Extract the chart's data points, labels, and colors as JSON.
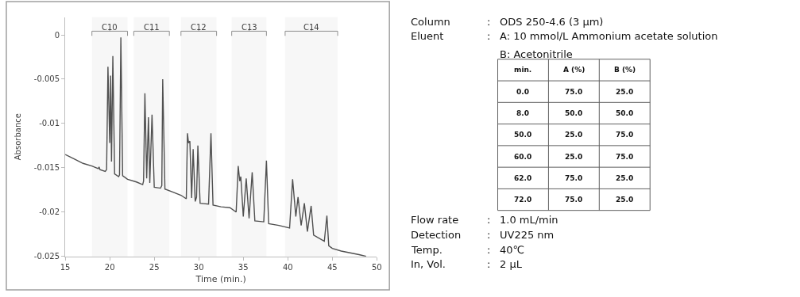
{
  "chart_data": [
    {
      "type": "line",
      "xlabel": "Time (min.)",
      "ylabel": "Absorbance",
      "xlim": [
        15,
        50
      ],
      "ylim": [
        -0.025,
        0.002
      ],
      "xticks": [
        15,
        20,
        25,
        30,
        35,
        40,
        45,
        50
      ],
      "yticks": [
        0,
        -0.005,
        -0.01,
        -0.015,
        -0.02,
        -0.025
      ],
      "grid": false,
      "marker": "none",
      "line_style": "solid",
      "bands": [
        {
          "axis": "x",
          "from": 18.0,
          "to": 22.0,
          "label": "C10"
        },
        {
          "axis": "x",
          "from": 22.7,
          "to": 26.7,
          "label": "C11"
        },
        {
          "axis": "x",
          "from": 28.0,
          "to": 32.0,
          "label": "C12"
        },
        {
          "axis": "x",
          "from": 33.7,
          "to": 37.6,
          "label": "C13"
        },
        {
          "axis": "x",
          "from": 39.7,
          "to": 45.6,
          "label": "C14"
        }
      ],
      "series": [
        {
          "color": "#505050",
          "x": [
            15,
            16,
            17,
            18,
            18.7,
            18.8,
            18.9,
            19.5,
            19.65,
            19.8,
            20.0,
            20.1,
            20.2,
            20.35,
            20.55,
            21.0,
            21.1,
            21.25,
            21.45,
            22,
            23,
            23.7,
            23.8,
            23.95,
            24.15,
            24.35,
            24.5,
            24.75,
            25.0,
            25.7,
            25.85,
            25.95,
            26.2,
            27,
            28,
            28.6,
            28.73,
            28.85,
            29.0,
            29.2,
            29.37,
            29.6,
            29.75,
            29.9,
            30.15,
            31.1,
            31.37,
            31.6,
            32.5,
            33.5,
            34.2,
            34.43,
            34.6,
            34.72,
            35.0,
            35.33,
            35.65,
            36.0,
            36.3,
            37.3,
            37.6,
            37.85,
            39,
            40.2,
            40.54,
            40.9,
            41.15,
            41.5,
            41.86,
            42.2,
            42.62,
            42.9,
            44.1,
            44.39,
            44.6,
            45,
            46,
            47,
            48,
            48.8
          ],
          "values": [
            -0.0135,
            -0.014,
            -0.0145,
            -0.0148,
            -0.0151,
            -0.0149,
            -0.0152,
            -0.0154,
            -0.0152,
            -0.0036,
            -0.0122,
            -0.0046,
            -0.0143,
            -0.0024,
            -0.0157,
            -0.016,
            -0.0158,
            -0.0003,
            -0.0159,
            -0.0163,
            -0.0166,
            -0.0169,
            -0.0165,
            -0.0066,
            -0.0162,
            -0.0093,
            -0.0167,
            -0.009,
            -0.0172,
            -0.0173,
            -0.017,
            -0.005,
            -0.0174,
            -0.0177,
            -0.0181,
            -0.0185,
            -0.0111,
            -0.0122,
            -0.012,
            -0.0184,
            -0.0129,
            -0.0188,
            -0.0183,
            -0.0125,
            -0.019,
            -0.0191,
            -0.0111,
            -0.0192,
            -0.0194,
            -0.0195,
            -0.02,
            -0.0148,
            -0.0165,
            -0.016,
            -0.0205,
            -0.0162,
            -0.0207,
            -0.0155,
            -0.021,
            -0.0211,
            -0.0142,
            -0.0213,
            -0.0215,
            -0.0218,
            -0.0163,
            -0.0205,
            -0.0183,
            -0.0215,
            -0.019,
            -0.0222,
            -0.0193,
            -0.0226,
            -0.0233,
            -0.0204,
            -0.0238,
            -0.0241,
            -0.0244,
            -0.0246,
            -0.0248,
            -0.025
          ]
        }
      ]
    },
    {
      "type": "other",
      "annotations": [
        "Column",
        ": ODS 250-4.6 (3 μm)",
        "Eluent",
        ": A: 10 mmol/L Ammonium acetate solution",
        "B: Acetonitrile",
        "Flow rate",
        ": 1.0 mL/min",
        "Detection",
        ": UV225 nm",
        "Temp.",
        ": 40℃",
        "In, Vol.",
        ": 2 μL"
      ]
    },
    {
      "type": "other",
      "categories": [
        "min.",
        "A (%)",
        "B (%)"
      ],
      "annotations": [
        "0.0",
        "75.0",
        "25.0",
        "8.0",
        "50.0",
        "50.0",
        "50.0",
        "25.0",
        "75.0",
        "60.0",
        "25.0",
        "75.0",
        "62.0",
        "75.0",
        "25.0",
        "72.0",
        "75.0",
        "25.0"
      ]
    }
  ]
}
